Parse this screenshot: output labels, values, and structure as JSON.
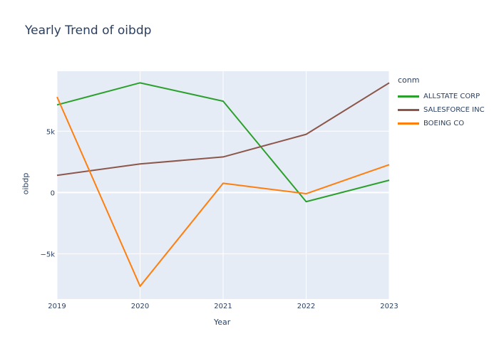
{
  "chart_data": {
    "type": "line",
    "title": "Yearly Trend of oibdp",
    "xlabel": "Year",
    "ylabel": "oibdp",
    "x": [
      2019,
      2020,
      2021,
      2022,
      2023
    ],
    "xticks": [
      "2019",
      "2020",
      "2021",
      "2022",
      "2023"
    ],
    "yticks": [
      {
        "value": -5000,
        "label": "−5k"
      },
      {
        "value": 0,
        "label": "0"
      },
      {
        "value": 5000,
        "label": "5k"
      }
    ],
    "ylim": [
      -8700,
      9900
    ],
    "legend_title": "conm",
    "legend_position": "right",
    "grid": true,
    "series": [
      {
        "name": "ALLSTATE CORP",
        "color": "#2ca02c",
        "values": [
          7150,
          8950,
          7450,
          -750,
          1000
        ]
      },
      {
        "name": "SALESFORCE INC",
        "color": "#8c564b",
        "values": [
          1400,
          2330,
          2900,
          4750,
          8950
        ]
      },
      {
        "name": "BOEING CO",
        "color": "#ff7f0e",
        "values": [
          7800,
          -7650,
          750,
          -100,
          2270
        ]
      }
    ]
  }
}
